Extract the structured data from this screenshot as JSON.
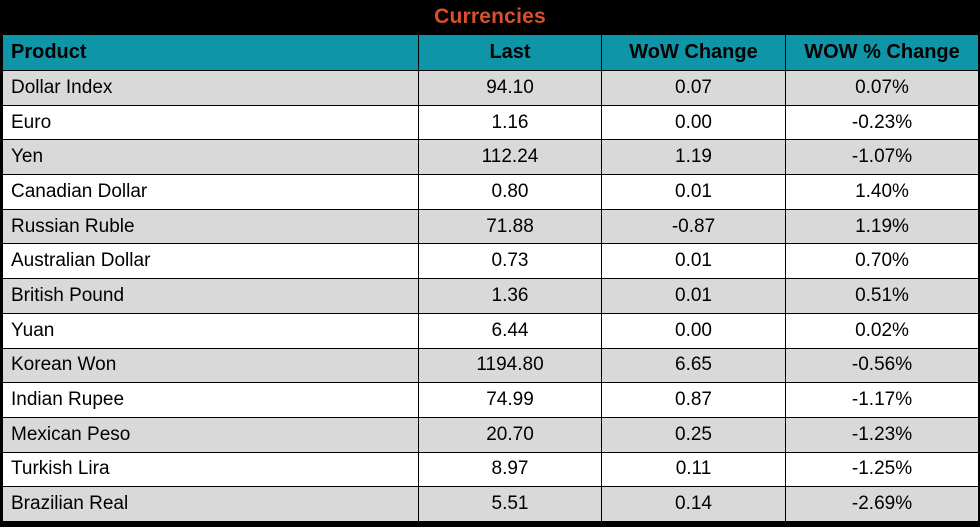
{
  "title": "Currencies",
  "colors": {
    "header_bg": "#0E96A8",
    "title_color": "#D8502D",
    "row_alt_bg": "#D9D9D9",
    "row_bg": "#FFFFFF",
    "border_color": "#000000",
    "text_color": "#000000"
  },
  "chart_data": {
    "type": "table",
    "title": "Currencies",
    "columns": [
      "Product",
      "Last",
      "WoW Change",
      "WOW % Change"
    ],
    "rows": [
      [
        "Dollar Index",
        "94.10",
        "0.07",
        "0.07%"
      ],
      [
        "Euro",
        "1.16",
        "0.00",
        "-0.23%"
      ],
      [
        "Yen",
        "112.24",
        "1.19",
        "-1.07%"
      ],
      [
        "Canadian Dollar",
        "0.80",
        "0.01",
        "1.40%"
      ],
      [
        "Russian Ruble",
        "71.88",
        "-0.87",
        "1.19%"
      ],
      [
        "Australian Dollar",
        "0.73",
        "0.01",
        "0.70%"
      ],
      [
        "British Pound",
        "1.36",
        "0.01",
        "0.51%"
      ],
      [
        "Yuan",
        "6.44",
        "0.00",
        "0.02%"
      ],
      [
        "Korean Won",
        "1194.80",
        "6.65",
        "-0.56%"
      ],
      [
        "Indian Rupee",
        "74.99",
        "0.87",
        "-1.17%"
      ],
      [
        "Mexican Peso",
        "20.70",
        "0.25",
        "-1.23%"
      ],
      [
        "Turkish Lira",
        "8.97",
        "0.11",
        "-1.25%"
      ],
      [
        "Brazilian Real",
        "5.51",
        "0.14",
        "-2.69%"
      ]
    ],
    "layout": {
      "alternating_rows": true,
      "first_data_row_shaded": true,
      "product_column_align": "left",
      "value_columns_align": "center",
      "title_position": "top-center"
    }
  }
}
